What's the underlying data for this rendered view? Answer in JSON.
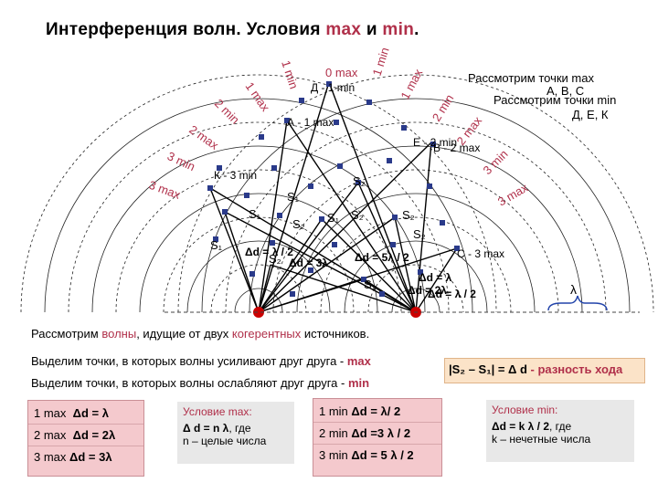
{
  "title": {
    "main": "Интерференция  волн.  Условия ",
    "max": "max",
    "and": " и ",
    "min": "min",
    "dot": "."
  },
  "colors": {
    "accent": "#b0304a",
    "pink_box": "#f4c9cd",
    "gray_box": "#e8e8e8",
    "wave": "#222222",
    "source": "#cc0000",
    "triangle": "#3344aa"
  },
  "diagram": {
    "arc_labels": {
      "zero_max": "0 max",
      "one_min_left": "1 min",
      "one_min_right": "1 min",
      "one_max_left": "1 max",
      "one_max_right": "1 max",
      "two_min_left": "2 min",
      "two_min_right": "2 min",
      "two_max_left": "2 max",
      "two_max_right": "2 max",
      "three_min_left": "3 min",
      "three_min_right": "3 min",
      "three_max_left": "3 max",
      "three_max_right": "3 max"
    },
    "point_labels": {
      "D": "Д - 1 min",
      "A": "А - 1 max",
      "E": "Е - 2 min",
      "B": "В - 2 max",
      "K": "К - 3 min",
      "C": "С - 3 max"
    },
    "s_labels": {
      "s1": "S₁",
      "s2": "S₂"
    },
    "delta_labels": {
      "d_half": "Δd = λ / 2",
      "d_3l": "Δd = 3λ",
      "d_5half": "Δd = 5λ / 2",
      "d_l": "Δd = λ",
      "d_2l": "Δd = 2λ",
      "d_half_b": "Δd = λ / 2"
    },
    "lambda": "λ"
  },
  "right_notes": {
    "line1": "Рассмотрим  точки  max",
    "line2": "А, В, С",
    "line3": "Рассмотрим  точки min",
    "line4": "Д, Е, К"
  },
  "waves_text": {
    "before": "Рассмотрим ",
    "waves": "волны",
    "middle": ", идущие  от  двух ",
    "coherent": "когерентных",
    "after": " источников."
  },
  "select_max": {
    "text": "Выделим  точки,  в  которых   волны  усиливают  друг  друга - ",
    "kw": "max"
  },
  "select_min": {
    "text": "Выделим  точки,  в  которых  волны  ослабляют  друг  друга - ",
    "kw": "min"
  },
  "path_diff": {
    "formula": "|S₂ – S₁| = Δ d",
    "desc": " - разность  хода"
  },
  "max_list": [
    {
      "label": "1 max",
      "formula": "Δd = λ"
    },
    {
      "label": "2 max",
      "formula": "Δd = 2λ"
    },
    {
      "label": "3 max",
      "formula": "Δd = 3λ"
    }
  ],
  "max_condition": {
    "title": "Условие  max:",
    "formula": "Δ d = n λ",
    "rest": ", где",
    "note": "n – целые числа"
  },
  "min_list": [
    {
      "label": "1 min",
      "formula": "Δd = λ/ 2"
    },
    {
      "label": "2 min",
      "formula": "Δd =3 λ / 2"
    },
    {
      "label": "3 min",
      "formula": "Δd = 5 λ / 2"
    }
  ],
  "min_condition": {
    "title": "Условие  min:",
    "formula": "Δd = k λ / 2",
    "rest": ", где",
    "note": "k – нечетные  числа"
  }
}
